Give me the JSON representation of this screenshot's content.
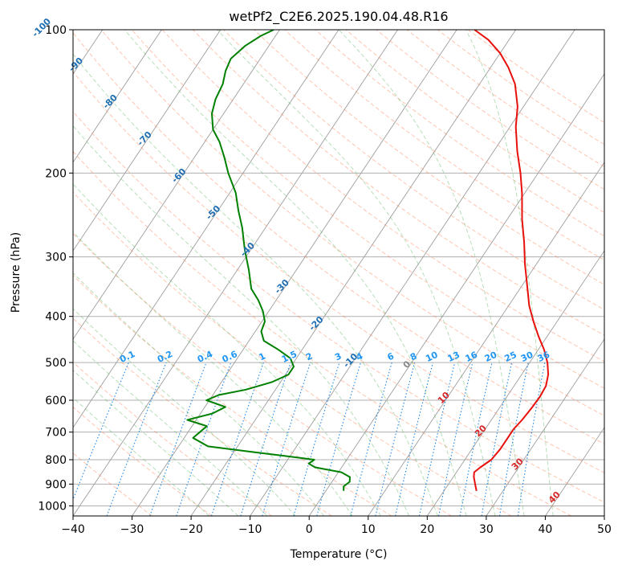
{
  "chart_data": {
    "type": "line",
    "title": "wetPf2_C2E6.2025.190.04.48.R16",
    "xlabel": "Temperature (°C)",
    "ylabel": "Pressure (hPa)",
    "xlim": [
      -40,
      50
    ],
    "ylim": [
      1050,
      100
    ],
    "y_scale": "log",
    "grid": true,
    "x_ticks": [
      "−40",
      "−30",
      "−20",
      "−10",
      "0",
      "10",
      "20",
      "30",
      "40",
      "50"
    ],
    "y_ticks": [
      "100",
      "200",
      "300",
      "400",
      "500",
      "600",
      "700",
      "800",
      "900",
      "1000"
    ],
    "isotherm_labels": [
      "-100",
      "-90",
      "-80",
      "-70",
      "-60",
      "-50",
      "-40",
      "-30",
      "-20",
      "-10",
      "0",
      "10",
      "20",
      "30",
      "40"
    ],
    "mixing_ratio_labels": [
      "0.1",
      "0.2",
      "0.4",
      "0.6",
      "1",
      "1.5",
      "2",
      "3",
      "4",
      "6",
      "8",
      "10",
      "13",
      "16",
      "20",
      "25",
      "30",
      "36"
    ],
    "colors": {
      "temperature": "#e8100c",
      "dewpoint": "#008000",
      "isotherm": "#9e9e9e",
      "dry_adiabat": "#ff7f50",
      "moist_adiabat": "#4caf50",
      "mixing_ratio": "#1e88e5"
    },
    "series": [
      {
        "color": "#e8100c",
        "points": [
          {
            "p": 930,
            "t": 25.5
          },
          {
            "p": 900,
            "t": 24.5
          },
          {
            "p": 870,
            "t": 23.5
          },
          {
            "p": 850,
            "t": 23.0
          },
          {
            "p": 830,
            "t": 23.5
          },
          {
            "p": 800,
            "t": 24.5
          },
          {
            "p": 760,
            "t": 24.8
          },
          {
            "p": 720,
            "t": 24.8
          },
          {
            "p": 690,
            "t": 24.8
          },
          {
            "p": 660,
            "t": 25.2
          },
          {
            "p": 620,
            "t": 25.5
          },
          {
            "p": 590,
            "t": 25.6
          },
          {
            "p": 560,
            "t": 25.4
          },
          {
            "p": 530,
            "t": 24.5
          },
          {
            "p": 500,
            "t": 23.0
          },
          {
            "p": 470,
            "t": 21.0
          },
          {
            "p": 440,
            "t": 18.5
          },
          {
            "p": 410,
            "t": 16.0
          },
          {
            "p": 380,
            "t": 13.5
          },
          {
            "p": 340,
            "t": 10.5
          },
          {
            "p": 310,
            "t": 8.0
          },
          {
            "p": 280,
            "t": 5.5
          },
          {
            "p": 250,
            "t": 2.5
          },
          {
            "p": 220,
            "t": -0.5
          },
          {
            "p": 200,
            "t": -3.0
          },
          {
            "p": 180,
            "t": -6.0
          },
          {
            "p": 160,
            "t": -9.0
          },
          {
            "p": 145,
            "t": -11.0
          },
          {
            "p": 130,
            "t": -14.0
          },
          {
            "p": 120,
            "t": -17.0
          },
          {
            "p": 112,
            "t": -20.0
          },
          {
            "p": 105,
            "t": -23.5
          },
          {
            "p": 100,
            "t": -27.0
          }
        ]
      },
      {
        "color": "#008000",
        "points": [
          {
            "p": 930,
            "t": 3.0
          },
          {
            "p": 910,
            "t": 2.5
          },
          {
            "p": 890,
            "t": 3.0
          },
          {
            "p": 870,
            "t": 2.5
          },
          {
            "p": 850,
            "t": 0.5
          },
          {
            "p": 830,
            "t": -4.5
          },
          {
            "p": 815,
            "t": -6.0
          },
          {
            "p": 800,
            "t": -5.5
          },
          {
            "p": 785,
            "t": -11.0
          },
          {
            "p": 770,
            "t": -17.0
          },
          {
            "p": 750,
            "t": -25.0
          },
          {
            "p": 720,
            "t": -28.5
          },
          {
            "p": 700,
            "t": -28.0
          },
          {
            "p": 680,
            "t": -27.5
          },
          {
            "p": 660,
            "t": -31.5
          },
          {
            "p": 640,
            "t": -28.0
          },
          {
            "p": 620,
            "t": -26.5
          },
          {
            "p": 600,
            "t": -30.5
          },
          {
            "p": 585,
            "t": -29.0
          },
          {
            "p": 570,
            "t": -25.0
          },
          {
            "p": 550,
            "t": -21.5
          },
          {
            "p": 530,
            "t": -19.5
          },
          {
            "p": 510,
            "t": -19.5
          },
          {
            "p": 490,
            "t": -21.0
          },
          {
            "p": 470,
            "t": -24.0
          },
          {
            "p": 450,
            "t": -27.5
          },
          {
            "p": 430,
            "t": -29.0
          },
          {
            "p": 410,
            "t": -29.5
          },
          {
            "p": 390,
            "t": -31.0
          },
          {
            "p": 370,
            "t": -33.0
          },
          {
            "p": 350,
            "t": -35.5
          },
          {
            "p": 320,
            "t": -38.0
          },
          {
            "p": 290,
            "t": -41.0
          },
          {
            "p": 260,
            "t": -44.0
          },
          {
            "p": 240,
            "t": -46.5
          },
          {
            "p": 220,
            "t": -49.0
          },
          {
            "p": 200,
            "t": -52.5
          },
          {
            "p": 185,
            "t": -55.0
          },
          {
            "p": 172,
            "t": -57.5
          },
          {
            "p": 162,
            "t": -60.0
          },
          {
            "p": 150,
            "t": -62.0
          },
          {
            "p": 140,
            "t": -63.0
          },
          {
            "p": 130,
            "t": -63.5
          },
          {
            "p": 122,
            "t": -64.5
          },
          {
            "p": 115,
            "t": -65.0
          },
          {
            "p": 108,
            "t": -64.0
          },
          {
            "p": 103,
            "t": -62.5
          },
          {
            "p": 100,
            "t": -61.0
          }
        ]
      }
    ]
  }
}
